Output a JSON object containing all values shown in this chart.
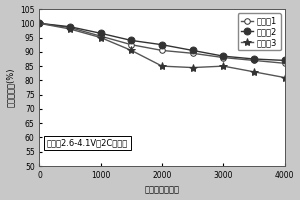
{
  "title": "",
  "xlabel": "循环次数（次）",
  "ylabel": "容量保持率(%)",
  "annotation": "常温，2.6-4.1V，2C条件下",
  "xlim": [
    0,
    4000
  ],
  "ylim": [
    50,
    105
  ],
  "xticks": [
    0,
    1000,
    2000,
    3000,
    4000
  ],
  "yticks": [
    50,
    55,
    60,
    65,
    70,
    75,
    80,
    85,
    90,
    95,
    100,
    105
  ],
  "series": [
    {
      "label": "实施例1",
      "x": [
        0,
        500,
        1000,
        1500,
        2000,
        2500,
        3000,
        3500,
        4000
      ],
      "y": [
        100,
        98.5,
        95.5,
        92.5,
        90.5,
        89.5,
        88.0,
        87.0,
        86.0
      ],
      "marker": "o",
      "markerfacecolor": "white",
      "color": "#555555",
      "linewidth": 1.0,
      "markersize": 4
    },
    {
      "label": "实施例2",
      "x": [
        0,
        500,
        1000,
        1500,
        2000,
        2500,
        3000,
        3500,
        4000
      ],
      "y": [
        100,
        98.8,
        96.5,
        94.0,
        92.5,
        90.5,
        88.5,
        87.5,
        87.0
      ],
      "marker": "o",
      "markerfacecolor": "#333333",
      "color": "#333333",
      "linewidth": 1.0,
      "markersize": 5
    },
    {
      "label": "实施例3",
      "x": [
        0,
        500,
        1000,
        1500,
        2000,
        2500,
        3000,
        3500,
        4000
      ],
      "y": [
        100,
        98.0,
        95.0,
        90.5,
        85.0,
        84.5,
        85.0,
        83.0,
        81.0
      ],
      "marker": "*",
      "markerfacecolor": "#333333",
      "color": "#555555",
      "linewidth": 1.0,
      "markersize": 6
    }
  ],
  "background_color": "#c8c8c8",
  "plot_bg_color": "#ffffff",
  "legend_fontsize": 6,
  "axis_fontsize": 6,
  "tick_fontsize": 5.5,
  "annotation_fontsize": 6
}
